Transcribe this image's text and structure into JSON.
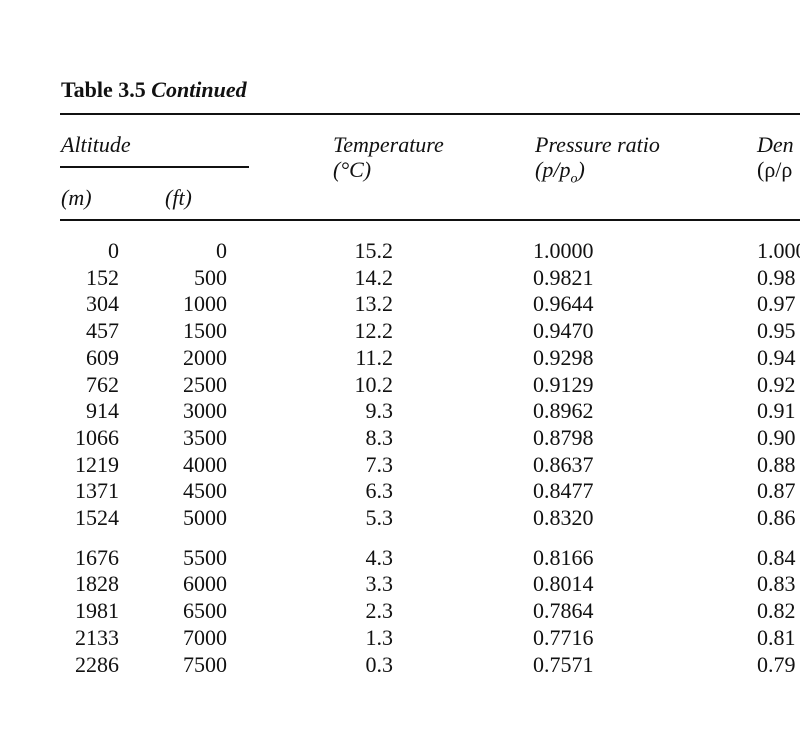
{
  "title": {
    "label": "Table 3.5",
    "continued": "Continued"
  },
  "header": {
    "altitude": "Altitude",
    "m": "(m)",
    "ft": "(ft)",
    "temperature": "Temperature",
    "temperature_unit": "(°C)",
    "pressure": "Pressure ratio",
    "pressure_unit": {
      "prefix": "(p/p",
      "sub": "o",
      "suffix": ")"
    },
    "density": "Den",
    "density_unit": "(ρ/ρ"
  },
  "table": {
    "groups": [
      {
        "rows": [
          [
            "0",
            "0",
            "15.2",
            "1.0000",
            "1.000"
          ],
          [
            "152",
            "500",
            "14.2",
            "0.9821",
            "0.98"
          ],
          [
            "304",
            "1000",
            "13.2",
            "0.9644",
            "0.97"
          ],
          [
            "457",
            "1500",
            "12.2",
            "0.9470",
            "0.95"
          ],
          [
            "609",
            "2000",
            "11.2",
            "0.9298",
            "0.94"
          ],
          [
            "762",
            "2500",
            "10.2",
            "0.9129",
            "0.92"
          ],
          [
            "914",
            "3000",
            "9.3",
            "0.8962",
            "0.91"
          ],
          [
            "1066",
            "3500",
            "8.3",
            "0.8798",
            "0.90"
          ],
          [
            "1219",
            "4000",
            "7.3",
            "0.8637",
            "0.88"
          ],
          [
            "1371",
            "4500",
            "6.3",
            "0.8477",
            "0.87"
          ],
          [
            "1524",
            "5000",
            "5.3",
            "0.8320",
            "0.86"
          ]
        ]
      },
      {
        "rows": [
          [
            "1676",
            "5500",
            "4.3",
            "0.8166",
            "0.84"
          ],
          [
            "1828",
            "6000",
            "3.3",
            "0.8014",
            "0.83"
          ],
          [
            "1981",
            "6500",
            "2.3",
            "0.7864",
            "0.82"
          ],
          [
            "2133",
            "7000",
            "1.3",
            "0.7716",
            "0.81"
          ],
          [
            "2286",
            "7500",
            "0.3",
            "0.7571",
            "0.79"
          ]
        ]
      }
    ]
  }
}
